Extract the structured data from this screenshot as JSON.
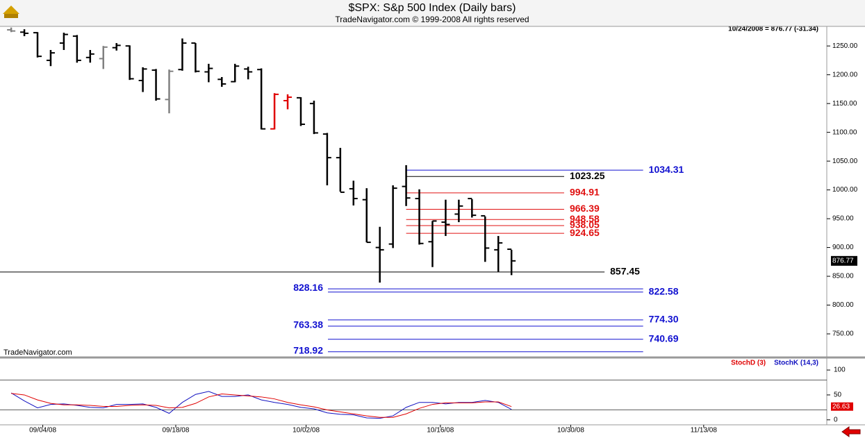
{
  "chart_data": [
    {
      "type": "ohlc",
      "title": "$SPX:  S&p 500 Index  (Daily bars)",
      "subtitle": "TradeNavigator.com © 1999-2008 All rights reserved",
      "info": "10/24/2008 = 876.77 (-31.34)",
      "watermark": "TradeNavigator.com",
      "open": [
        1278,
        1274,
        1273,
        1225,
        1255,
        1267,
        1230,
        1228,
        1247,
        1250,
        1190,
        1208,
        1157,
        1209,
        1255,
        1205,
        1192,
        1188,
        1210,
        1209,
        1106,
        1155,
        1160,
        1150,
        1097,
        1056,
        1002,
        983,
        900,
        906,
        1006,
        985,
        910,
        944,
        958,
        985,
        955,
        896,
        897
      ],
      "high": [
        1282,
        1279,
        1274,
        1243,
        1273,
        1269,
        1243,
        1250,
        1255,
        1251,
        1213,
        1210,
        1209,
        1263,
        1255,
        1219,
        1196,
        1219,
        1214,
        1211,
        1168,
        1166,
        1161,
        1155,
        1099,
        1073,
        1016,
        1003,
        936,
        1008,
        1043,
        1001,
        946,
        983,
        983,
        984,
        954,
        920,
        896
      ],
      "low": [
        1274,
        1267,
        1230,
        1215,
        1243,
        1221,
        1221,
        1210,
        1242,
        1191,
        1170,
        1155,
        1133,
        1207,
        1204,
        1187,
        1179,
        1187,
        1192,
        1105,
        1105,
        1140,
        1111,
        1097,
        1008,
        997,
        973,
        909,
        839,
        899,
        972,
        905,
        866,
        920,
        944,
        952,
        875,
        858,
        852
      ],
      "close": [
        1276,
        1272,
        1232,
        1238,
        1270,
        1225,
        1236,
        1248,
        1251,
        1193,
        1210,
        1158,
        1206,
        1255,
        1206,
        1211,
        1184,
        1215,
        1205,
        1106,
        1166,
        1161,
        1114,
        1099,
        1056,
        996,
        985,
        909,
        896,
        1003,
        986,
        907,
        946,
        940,
        972,
        956,
        899,
        908,
        876.77
      ],
      "colors": [
        "#808080",
        "#000000",
        "#000000",
        "#000000",
        "#000000",
        "#000000",
        "#000000",
        "#808080",
        "#000000",
        "#000000",
        "#000000",
        "#000000",
        "#808080",
        "#000000",
        "#000000",
        "#000000",
        "#000000",
        "#000000",
        "#000000",
        "#000000",
        "#e00000",
        "#e00000",
        "#000000",
        "#000000",
        "#000000",
        "#000000",
        "#000000",
        "#000000",
        "#000000",
        "#000000",
        "#000000",
        "#000000",
        "#000000",
        "#000000",
        "#000000",
        "#000000",
        "#000000",
        "#000000",
        "#000000"
      ],
      "xlim": [
        -0.85,
        61.95
      ],
      "ylim": [
        709,
        1284
      ],
      "yticks": [
        {
          "value": 750,
          "label": "750.00"
        },
        {
          "value": 800,
          "label": "800.00"
        },
        {
          "value": 850,
          "label": "850.00"
        },
        {
          "value": 900,
          "label": "900.00"
        },
        {
          "value": 950,
          "label": "950.00"
        },
        {
          "value": 1000,
          "label": "1000.00"
        },
        {
          "value": 1050,
          "label": "1050.00"
        },
        {
          "value": 1100,
          "label": "1100.00"
        },
        {
          "value": 1150,
          "label": "1150.00"
        },
        {
          "value": 1200,
          "label": "1200.00"
        },
        {
          "value": 1250,
          "label": "1250.00"
        }
      ],
      "levels": [
        {
          "value": 1034.31,
          "color": "#1010d0",
          "x_from": 30,
          "x_to": 48,
          "side": "right"
        },
        {
          "value": 1023.25,
          "color": "#000000",
          "x_from": 30,
          "x_to": 42,
          "side": "right"
        },
        {
          "value": 994.91,
          "color": "#e01010",
          "x_from": 30,
          "x_to": 42,
          "side": "right"
        },
        {
          "value": 966.39,
          "color": "#e01010",
          "x_from": 30,
          "x_to": 42,
          "side": "right"
        },
        {
          "value": 948.58,
          "color": "#e01010",
          "x_from": 30,
          "x_to": 42,
          "side": "right"
        },
        {
          "value": 938.05,
          "color": "#e01010",
          "x_from": 30,
          "x_to": 42,
          "side": "right"
        },
        {
          "value": 924.65,
          "color": "#e01010",
          "x_from": 30,
          "x_to": 42,
          "side": "right"
        },
        {
          "value": 857.45,
          "color": "#000000",
          "x_from": -0.85,
          "x_to": 45.07,
          "side": "right"
        },
        {
          "value": 828.16,
          "color": "#1010d0",
          "x_from": 24.06,
          "x_to": 48,
          "side": "left"
        },
        {
          "value": 822.58,
          "color": "#1010d0",
          "x_from": 24.06,
          "x_to": 48,
          "side": "right"
        },
        {
          "value": 774.3,
          "label": "774.30",
          "color": "#1010d0",
          "x_from": 24.06,
          "x_to": 48,
          "side": "right"
        },
        {
          "value": 763.38,
          "color": "#1010d0",
          "x_from": 24.06,
          "x_to": 48,
          "side": "left"
        },
        {
          "value": 740.69,
          "color": "#1010d0",
          "x_from": 24.06,
          "x_to": 48,
          "side": "right"
        },
        {
          "value": 718.92,
          "color": "#1010d0",
          "x_from": 24.06,
          "x_to": 48,
          "side": "left"
        }
      ]
    },
    {
      "type": "line",
      "series": [
        {
          "name": "StochD (3)",
          "color": "#e00000",
          "values": [
            53,
            50,
            40,
            33,
            30,
            30,
            29,
            27,
            27,
            29,
            30,
            29,
            24,
            25,
            33,
            46,
            52,
            50,
            48,
            46,
            42,
            35,
            30,
            26,
            20,
            16,
            12,
            8,
            5,
            5,
            12,
            23,
            31,
            34,
            34,
            34,
            36,
            36,
            26.63
          ]
        },
        {
          "name": "StochK (14,3)",
          "color": "#1010c0",
          "values": [
            54,
            38,
            24,
            31,
            32,
            29,
            25,
            24,
            31,
            31,
            32,
            25,
            13,
            35,
            51,
            57,
            47,
            47,
            50,
            40,
            35,
            31,
            25,
            22,
            14,
            11,
            10,
            4,
            3,
            8,
            25,
            35,
            35,
            32,
            35,
            35,
            39,
            35,
            21
          ]
        }
      ],
      "xlim": [
        -0.85,
        61.95
      ],
      "ylim": [
        -10,
        121
      ],
      "yticks": [
        0,
        50,
        100
      ],
      "reference_lines": [
        20,
        80
      ],
      "xticks": [
        {
          "value": 2.4,
          "label": "09/04/08"
        },
        {
          "value": 12.5,
          "label": "09/18/08"
        },
        {
          "value": 22.4,
          "label": "10/02/08"
        },
        {
          "value": 32.6,
          "label": "10/16/08"
        },
        {
          "value": 42.5,
          "label": "10/30/08"
        },
        {
          "value": 52.6,
          "label": "11/13/08"
        }
      ]
    }
  ]
}
